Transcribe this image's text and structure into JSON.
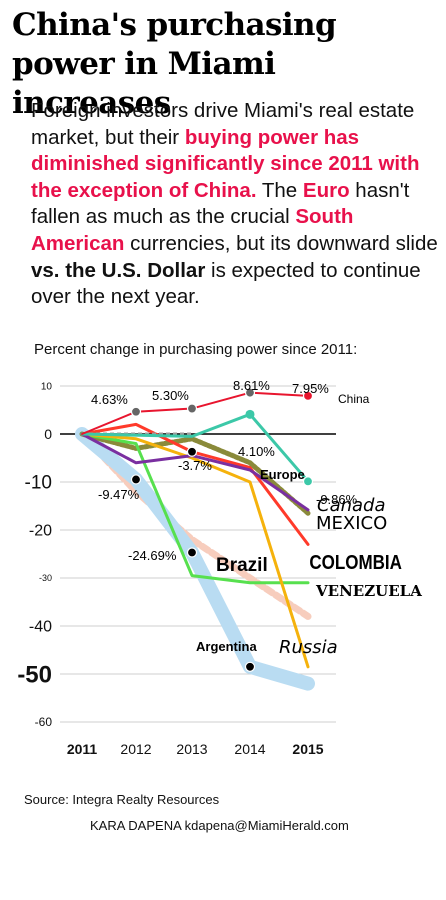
{
  "headline": "China's purchasing power in Miami increases",
  "intro": {
    "p1": "Foreign investors drive Miami's real estate market, but their ",
    "h1": "buying power has diminished significantly since 2011 with the exception of China.",
    "p2": " The ",
    "h2": "Euro",
    "p3": " hasn't fallen as much as the crucial ",
    "h3": "South American",
    "p4": " currencies, but its downward slide ",
    "b1": "vs. the U.S. Dollar",
    "p5": " is expected to continue over the next year."
  },
  "source": "Source: Integra Realty Resources",
  "credit": "KARA DAPENA kdapena@MiamiHerald.com",
  "chart_data": {
    "type": "line",
    "title": "Percent change in purchasing power since 2011:",
    "categories": [
      "2011",
      "2012",
      "2013",
      "2014",
      "2015"
    ],
    "ylim": [
      -60,
      10
    ],
    "y_ticks": [
      "10",
      "0",
      "-10",
      "-20",
      "-30",
      "-40",
      "-50",
      "-60"
    ],
    "legend": "labels next to lines",
    "series": [
      {
        "name": "China",
        "color": "#e8152e",
        "values": [
          0,
          4.63,
          5.3,
          8.61,
          7.95
        ]
      },
      {
        "name": "Europe",
        "color": "#3cc8a8",
        "values": [
          0,
          null,
          null,
          4.1,
          -9.86
        ]
      },
      {
        "name": "Canada",
        "color": "#7a2fa0",
        "values": [
          0,
          -6,
          -4.5,
          -7.5,
          -15.8
        ]
      },
      {
        "name": "MEXICO",
        "color": "#9b9b9b",
        "values": [
          0,
          -3,
          -1,
          -6,
          -16.5
        ]
      },
      {
        "name": "COLOMBIA",
        "color": "#ff3a2a",
        "values": [
          0,
          2,
          -3.7,
          -7,
          -23
        ]
      },
      {
        "name": "VENEZUELA",
        "color": "#57e04e",
        "values": [
          0,
          -2,
          -29.5,
          -31,
          -31
        ]
      },
      {
        "name": "Russia",
        "color": "#f5b20c",
        "values": [
          0,
          -1,
          -5,
          -10,
          -48.5
        ]
      },
      {
        "name": "Argentina",
        "color": "#b9dcf2",
        "values": [
          0,
          -9.47,
          -24.69,
          -48.5,
          -52
        ]
      },
      {
        "name": "Brazil",
        "color": "#f7cdbd",
        "values": [
          0,
          -12,
          -22,
          -30,
          -38
        ]
      }
    ],
    "annotations": [
      "4.63%",
      "5.30%",
      "8.61%",
      "7.95%",
      "4.10%",
      "-9.86%",
      "-9.47%",
      "-3.7%",
      "-24.69%"
    ]
  }
}
